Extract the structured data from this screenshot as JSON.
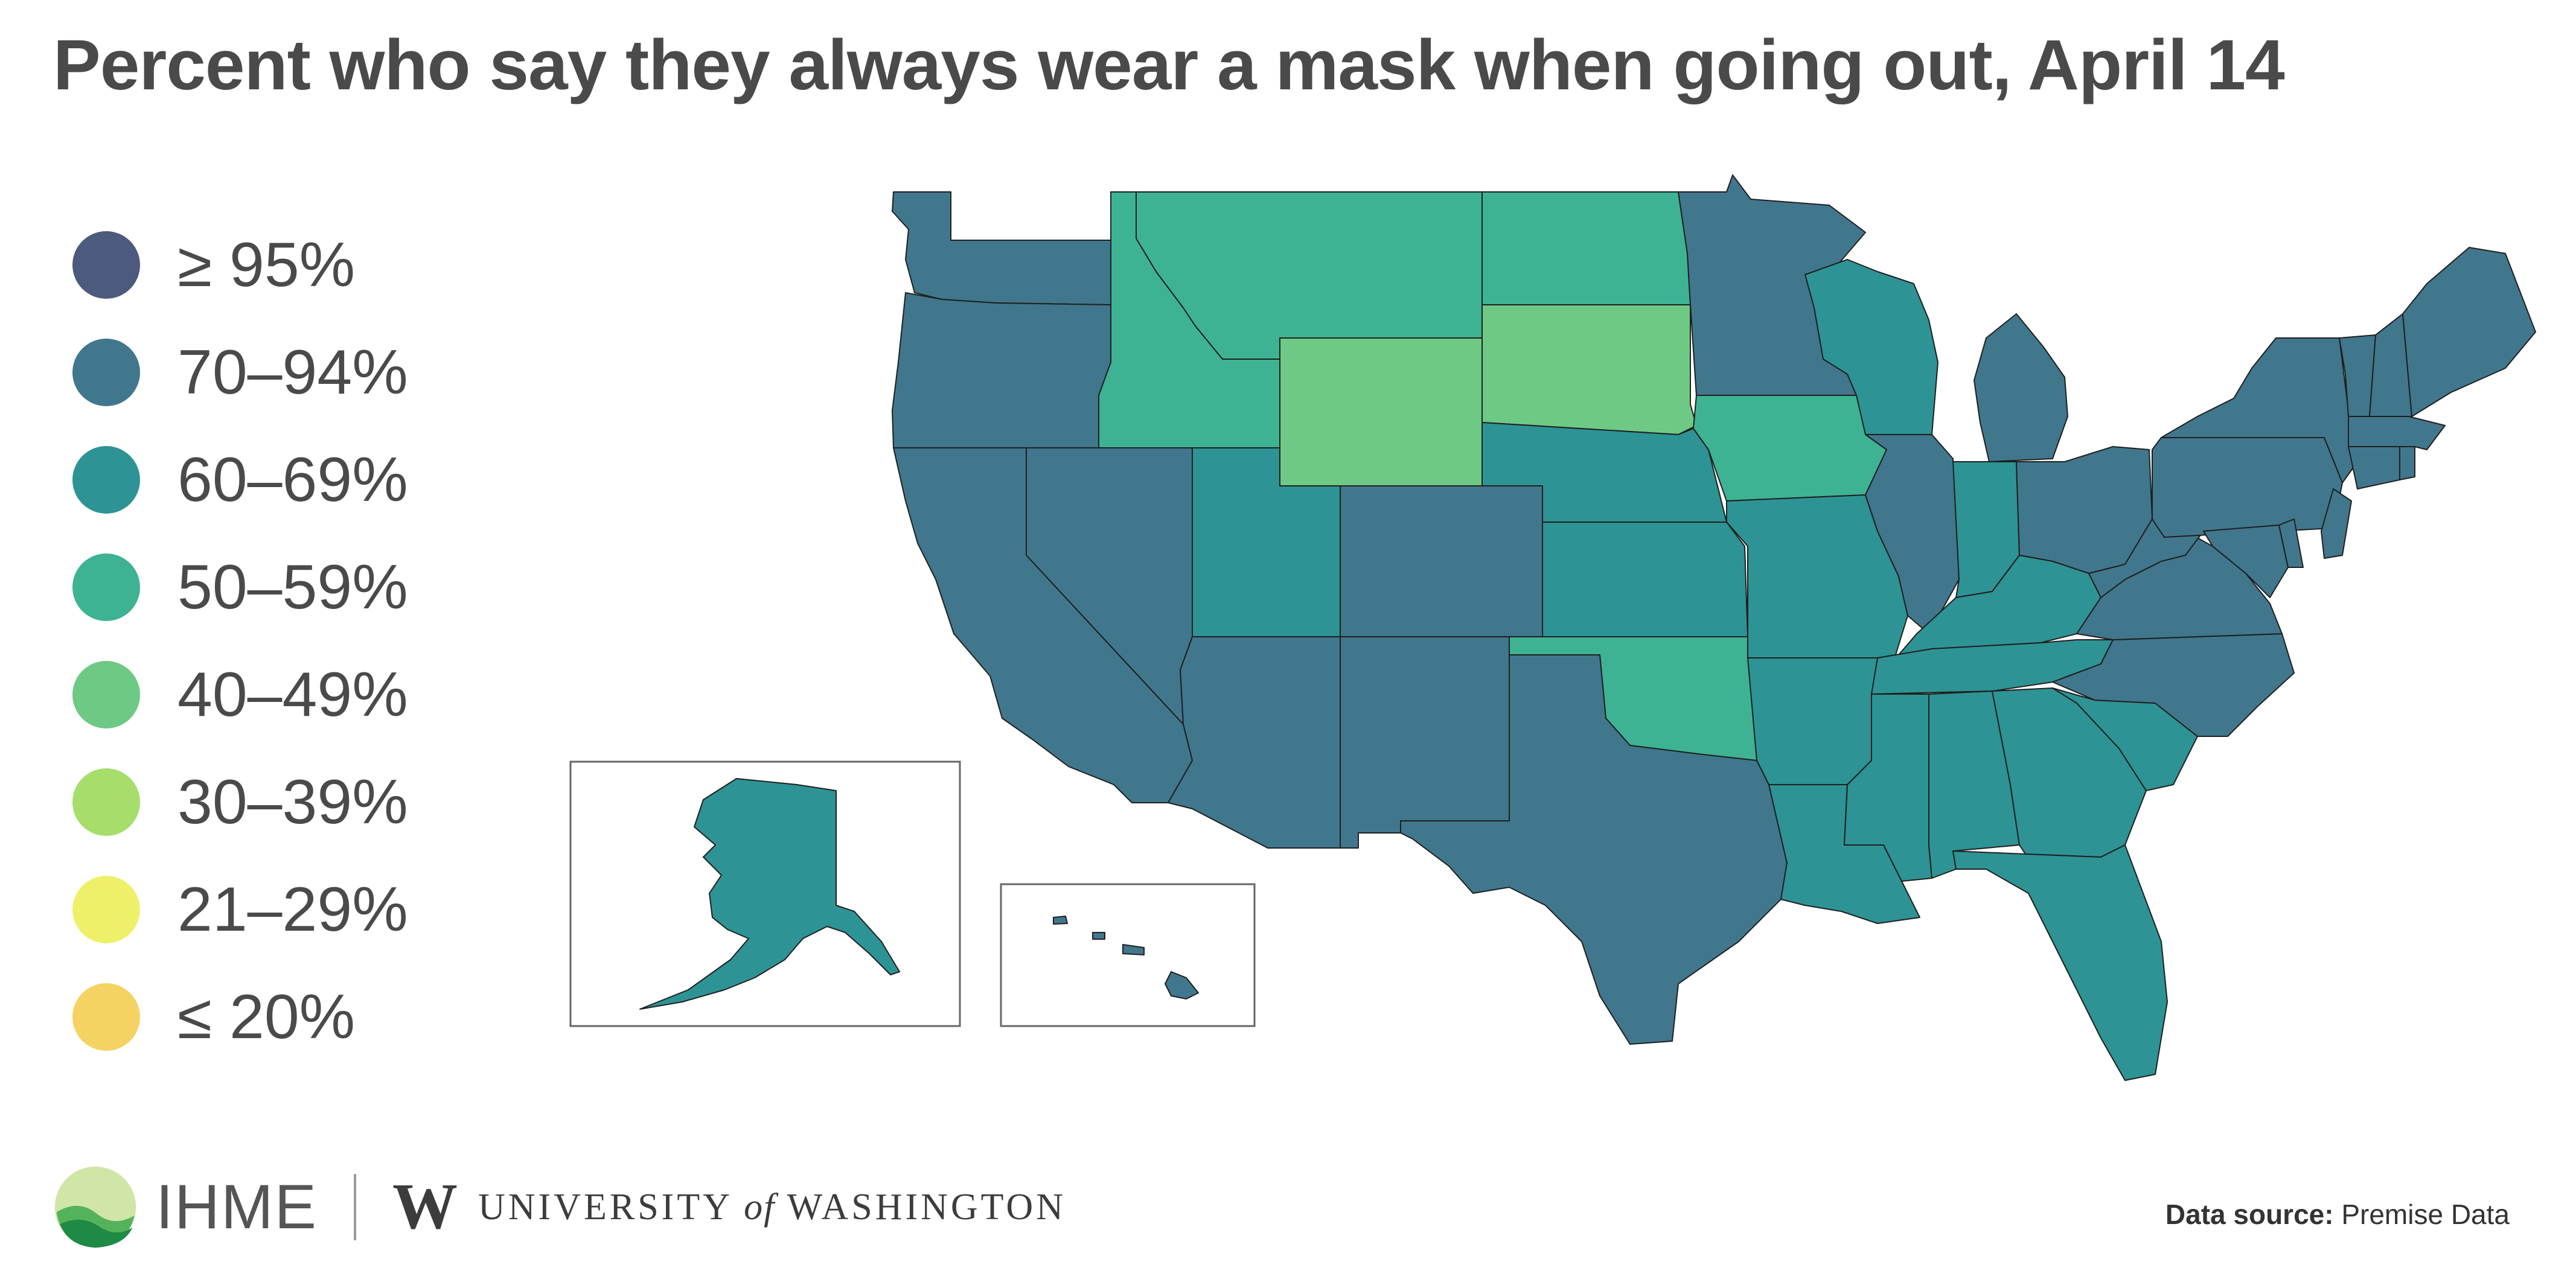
{
  "title": "Percent who say they always wear a mask when going out, April 14",
  "legend": [
    {
      "label": "≥ 95%",
      "color": "#4b5a7d"
    },
    {
      "label": "70–94%",
      "color": "#40778d"
    },
    {
      "label": "60–69%",
      "color": "#2e9394"
    },
    {
      "label": "50–59%",
      "color": "#3eb394"
    },
    {
      "label": "40–49%",
      "color": "#6ec985"
    },
    {
      "label": "30–39%",
      "color": "#a6dd6b"
    },
    {
      "label": "21–29%",
      "color": "#eef06a"
    },
    {
      "label": "≤ 20%",
      "color": "#f4d362"
    }
  ],
  "map": {
    "regions": [
      {
        "name": "Washington",
        "bin": "70–94%"
      },
      {
        "name": "Oregon",
        "bin": "70–94%"
      },
      {
        "name": "California",
        "bin": "70–94%"
      },
      {
        "name": "Nevada",
        "bin": "70–94%"
      },
      {
        "name": "Idaho",
        "bin": "50–59%"
      },
      {
        "name": "Montana",
        "bin": "50–59%"
      },
      {
        "name": "Wyoming",
        "bin": "40–49%"
      },
      {
        "name": "Utah",
        "bin": "60–69%"
      },
      {
        "name": "Arizona",
        "bin": "70–94%"
      },
      {
        "name": "Colorado",
        "bin": "70–94%"
      },
      {
        "name": "New Mexico",
        "bin": "70–94%"
      },
      {
        "name": "North Dakota",
        "bin": "50–59%"
      },
      {
        "name": "South Dakota",
        "bin": "40–49%"
      },
      {
        "name": "Nebraska",
        "bin": "60–69%"
      },
      {
        "name": "Kansas",
        "bin": "60–69%"
      },
      {
        "name": "Oklahoma",
        "bin": "50–59%"
      },
      {
        "name": "Texas",
        "bin": "70–94%"
      },
      {
        "name": "Minnesota",
        "bin": "70–94%"
      },
      {
        "name": "Iowa",
        "bin": "50–59%"
      },
      {
        "name": "Missouri",
        "bin": "60–69%"
      },
      {
        "name": "Arkansas",
        "bin": "60–69%"
      },
      {
        "name": "Louisiana",
        "bin": "60–69%"
      },
      {
        "name": "Wisconsin",
        "bin": "60–69%"
      },
      {
        "name": "Illinois",
        "bin": "70–94%"
      },
      {
        "name": "Michigan",
        "bin": "70–94%"
      },
      {
        "name": "Indiana",
        "bin": "60–69%"
      },
      {
        "name": "Ohio",
        "bin": "70–94%"
      },
      {
        "name": "Kentucky",
        "bin": "60–69%"
      },
      {
        "name": "Tennessee",
        "bin": "60–69%"
      },
      {
        "name": "Mississippi",
        "bin": "60–69%"
      },
      {
        "name": "Alabama",
        "bin": "60–69%"
      },
      {
        "name": "Georgia",
        "bin": "60–69%"
      },
      {
        "name": "Florida",
        "bin": "60–69%"
      },
      {
        "name": "South Carolina",
        "bin": "60–69%"
      },
      {
        "name": "North Carolina",
        "bin": "70–94%"
      },
      {
        "name": "Virginia",
        "bin": "70–94%"
      },
      {
        "name": "West Virginia",
        "bin": "70–94%"
      },
      {
        "name": "Pennsylvania",
        "bin": "70–94%"
      },
      {
        "name": "New York",
        "bin": "70–94%"
      },
      {
        "name": "Maryland",
        "bin": "70–94%"
      },
      {
        "name": "Delaware",
        "bin": "70–94%"
      },
      {
        "name": "New Jersey",
        "bin": "70–94%"
      },
      {
        "name": "Connecticut",
        "bin": "70–94%"
      },
      {
        "name": "Rhode Island",
        "bin": "70–94%"
      },
      {
        "name": "Massachusetts",
        "bin": "70–94%"
      },
      {
        "name": "Vermont",
        "bin": "70–94%"
      },
      {
        "name": "New Hampshire",
        "bin": "70–94%"
      },
      {
        "name": "Maine",
        "bin": "70–94%"
      },
      {
        "name": "Alaska",
        "bin": "60–69%"
      },
      {
        "name": "Hawaii",
        "bin": "70–94%"
      }
    ]
  },
  "footer": {
    "ihme": "IHME",
    "uw_mark": "W",
    "uw_pre": "UNIVERSITY",
    "uw_of": "of",
    "uw_post": "WASHINGTON",
    "source_label": "Data source:",
    "source_value": "Premise Data"
  }
}
